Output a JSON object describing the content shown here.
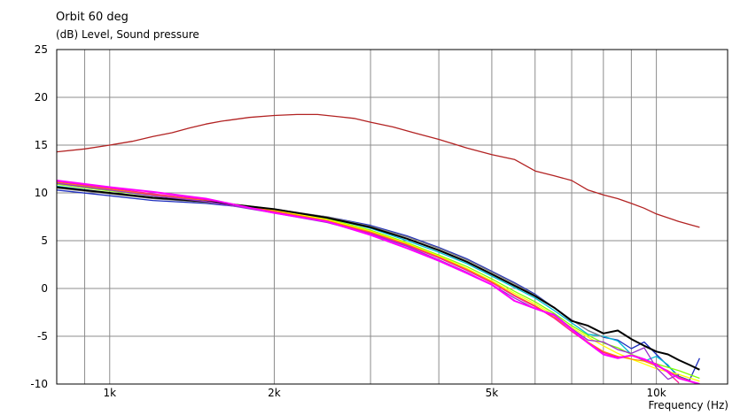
{
  "chart_data": {
    "type": "line",
    "title": "Orbit 60 deg",
    "ylabel": "(dB)  Level, Sound pressure",
    "xlabel": "Frequency  (Hz)",
    "x_scale": "log",
    "xlim": [
      800,
      13500
    ],
    "ylim": [
      -10,
      25
    ],
    "yticks": [
      25,
      20,
      15,
      10,
      5,
      0,
      -5,
      -10
    ],
    "xtick_labels": [
      {
        "value": 1000,
        "label": "1k"
      },
      {
        "value": 2000,
        "label": "2k"
      },
      {
        "value": 5000,
        "label": "5k"
      },
      {
        "value": 10000,
        "label": "10k"
      }
    ],
    "x_gridlines": [
      800,
      900,
      1000,
      2000,
      3000,
      4000,
      5000,
      6000,
      7000,
      8000,
      9000,
      10000
    ],
    "y_gridlines": [
      -5,
      0,
      5,
      10,
      15,
      20
    ],
    "series": [
      {
        "color": "#b22222",
        "width": 1.3,
        "points": [
          [
            800,
            14.3
          ],
          [
            900,
            14.6
          ],
          [
            1000,
            15.0
          ],
          [
            1100,
            15.4
          ],
          [
            1200,
            15.9
          ],
          [
            1300,
            16.3
          ],
          [
            1400,
            16.8
          ],
          [
            1500,
            17.2
          ],
          [
            1600,
            17.5
          ],
          [
            1800,
            17.9
          ],
          [
            2000,
            18.1
          ],
          [
            2200,
            18.2
          ],
          [
            2400,
            18.2
          ],
          [
            2600,
            18.0
          ],
          [
            2800,
            17.8
          ],
          [
            3000,
            17.4
          ],
          [
            3300,
            16.9
          ],
          [
            3600,
            16.3
          ],
          [
            4000,
            15.6
          ],
          [
            4500,
            14.7
          ],
          [
            5000,
            14.0
          ],
          [
            5500,
            13.5
          ],
          [
            6000,
            12.3
          ],
          [
            6500,
            11.8
          ],
          [
            7000,
            11.3
          ],
          [
            7500,
            10.3
          ],
          [
            8000,
            9.8
          ],
          [
            8500,
            9.4
          ],
          [
            9000,
            8.9
          ],
          [
            9500,
            8.4
          ],
          [
            10000,
            7.8
          ],
          [
            11000,
            7.0
          ],
          [
            12000,
            6.4
          ]
        ]
      },
      {
        "color": "#1f2fbf",
        "width": 1.3,
        "points": [
          [
            800,
            10.3
          ],
          [
            1000,
            9.7
          ],
          [
            1200,
            9.2
          ],
          [
            1500,
            8.9
          ],
          [
            2000,
            8.2
          ],
          [
            2500,
            7.5
          ],
          [
            3000,
            6.6
          ],
          [
            3500,
            5.5
          ],
          [
            4000,
            4.3
          ],
          [
            4500,
            3.1
          ],
          [
            5000,
            1.8
          ],
          [
            5500,
            0.6
          ],
          [
            6000,
            -0.6
          ],
          [
            6500,
            -2.0
          ],
          [
            7000,
            -3.3
          ],
          [
            7500,
            -4.4
          ],
          [
            8000,
            -5.1
          ],
          [
            8500,
            -5.4
          ],
          [
            9000,
            -6.3
          ],
          [
            9500,
            -5.6
          ],
          [
            10000,
            -6.9
          ],
          [
            10500,
            -8.1
          ],
          [
            11000,
            -9.2
          ],
          [
            11500,
            -9.6
          ],
          [
            12000,
            -7.3
          ]
        ]
      },
      {
        "color": "#00bcd4",
        "width": 1.3,
        "points": [
          [
            800,
            10.7
          ],
          [
            1000,
            10.0
          ],
          [
            1200,
            9.5
          ],
          [
            1500,
            9.1
          ],
          [
            2000,
            8.3
          ],
          [
            2500,
            7.4
          ],
          [
            3000,
            6.3
          ],
          [
            3500,
            5.0
          ],
          [
            4000,
            3.8
          ],
          [
            4500,
            2.6
          ],
          [
            5000,
            1.3
          ],
          [
            5500,
            0.1
          ],
          [
            6000,
            -1.0
          ],
          [
            6500,
            -2.3
          ],
          [
            7000,
            -3.6
          ],
          [
            7500,
            -4.8
          ],
          [
            8000,
            -5.0
          ],
          [
            8500,
            -5.5
          ],
          [
            9000,
            -6.9
          ],
          [
            9500,
            -7.6
          ],
          [
            10000,
            -7.1
          ],
          [
            10500,
            -8.0
          ],
          [
            11000,
            -9.4
          ]
        ]
      },
      {
        "color": "#7fff00",
        "width": 1.3,
        "points": [
          [
            800,
            10.9
          ],
          [
            1000,
            10.2
          ],
          [
            1200,
            9.7
          ],
          [
            1500,
            9.2
          ],
          [
            2000,
            8.3
          ],
          [
            2500,
            7.3
          ],
          [
            3000,
            6.1
          ],
          [
            3500,
            4.8
          ],
          [
            4000,
            3.5
          ],
          [
            4500,
            2.3
          ],
          [
            5000,
            1.0
          ],
          [
            5500,
            -0.3
          ],
          [
            6000,
            -1.4
          ],
          [
            6500,
            -2.6
          ],
          [
            7000,
            -3.9
          ],
          [
            7500,
            -4.9
          ],
          [
            8000,
            -5.7
          ],
          [
            8500,
            -6.2
          ],
          [
            9000,
            -6.9
          ],
          [
            9500,
            -7.4
          ],
          [
            10000,
            -7.9
          ],
          [
            11000,
            -8.6
          ],
          [
            12000,
            -9.4
          ]
        ]
      },
      {
        "color": "#ffff00",
        "width": 1.3,
        "points": [
          [
            800,
            11.0
          ],
          [
            1000,
            10.3
          ],
          [
            1200,
            9.8
          ],
          [
            1500,
            9.2
          ],
          [
            2000,
            8.2
          ],
          [
            2500,
            7.2
          ],
          [
            3000,
            6.0
          ],
          [
            3500,
            4.7
          ],
          [
            4000,
            3.4
          ],
          [
            4500,
            2.1
          ],
          [
            5000,
            0.8
          ],
          [
            5500,
            -0.5
          ],
          [
            6000,
            -1.6
          ],
          [
            6500,
            -2.8
          ],
          [
            7000,
            -4.1
          ],
          [
            7500,
            -5.1
          ],
          [
            8000,
            -6.0
          ],
          [
            8500,
            -6.8
          ],
          [
            9000,
            -7.4
          ],
          [
            9500,
            -7.9
          ],
          [
            10000,
            -8.4
          ],
          [
            11000,
            -9.0
          ],
          [
            12000,
            -9.7
          ]
        ]
      },
      {
        "color": "#ff8c00",
        "width": 1.3,
        "points": [
          [
            800,
            11.1
          ],
          [
            1000,
            10.4
          ],
          [
            1200,
            9.8
          ],
          [
            1500,
            9.2
          ],
          [
            2000,
            8.1
          ],
          [
            2500,
            7.1
          ],
          [
            3000,
            5.9
          ],
          [
            3500,
            4.6
          ],
          [
            4000,
            3.3
          ],
          [
            4500,
            2.0
          ],
          [
            5000,
            0.7
          ],
          [
            5500,
            -0.7
          ],
          [
            6000,
            -1.8
          ],
          [
            6500,
            -3.0
          ],
          [
            7000,
            -4.3
          ],
          [
            7500,
            -5.6
          ],
          [
            8000,
            -6.6
          ],
          [
            8500,
            -7.1
          ],
          [
            9000,
            -7.4
          ],
          [
            9500,
            -7.6
          ],
          [
            10000,
            -8.1
          ],
          [
            10500,
            -8.6
          ],
          [
            11000,
            -9.3
          ],
          [
            12000,
            -10.0
          ]
        ]
      },
      {
        "color": "#ff1493",
        "width": 1.3,
        "points": [
          [
            800,
            11.2
          ],
          [
            1000,
            10.5
          ],
          [
            1200,
            9.9
          ],
          [
            1500,
            9.3
          ],
          [
            2000,
            8.0
          ],
          [
            2500,
            7.0
          ],
          [
            3000,
            5.8
          ],
          [
            3500,
            4.5
          ],
          [
            4000,
            3.2
          ],
          [
            4500,
            1.9
          ],
          [
            5000,
            0.6
          ],
          [
            5500,
            -0.8
          ],
          [
            6000,
            -1.9
          ],
          [
            6500,
            -3.1
          ],
          [
            7000,
            -4.5
          ],
          [
            7500,
            -5.7
          ],
          [
            8000,
            -6.7
          ],
          [
            8500,
            -7.2
          ],
          [
            9000,
            -7.0
          ],
          [
            9500,
            -7.5
          ],
          [
            10000,
            -7.9
          ],
          [
            10500,
            -8.8
          ],
          [
            11000,
            -9.9
          ]
        ]
      },
      {
        "color": "#808080",
        "width": 1.3,
        "points": [
          [
            800,
            10.5
          ],
          [
            1000,
            9.9
          ],
          [
            1200,
            9.4
          ],
          [
            1500,
            9.0
          ],
          [
            2000,
            8.3
          ],
          [
            2500,
            7.5
          ],
          [
            3000,
            6.5
          ],
          [
            3500,
            5.4
          ],
          [
            4000,
            4.2
          ],
          [
            4500,
            3.0
          ],
          [
            5000,
            1.7
          ],
          [
            5500,
            0.5
          ],
          [
            6000,
            -0.7
          ],
          [
            6500,
            -2.0
          ],
          [
            7000,
            -3.3
          ],
          [
            7500,
            -4.4
          ],
          [
            8000,
            -5.1
          ]
        ]
      },
      {
        "color": "#000000",
        "width": 2.0,
        "points": [
          [
            800,
            10.6
          ],
          [
            1000,
            10.0
          ],
          [
            1200,
            9.5
          ],
          [
            1500,
            9.1
          ],
          [
            2000,
            8.3
          ],
          [
            2500,
            7.4
          ],
          [
            3000,
            6.4
          ],
          [
            3500,
            5.2
          ],
          [
            4000,
            4.0
          ],
          [
            4500,
            2.8
          ],
          [
            5000,
            1.5
          ],
          [
            5500,
            0.3
          ],
          [
            6000,
            -0.8
          ],
          [
            6500,
            -2.0
          ],
          [
            7000,
            -3.4
          ],
          [
            7500,
            -3.9
          ],
          [
            8000,
            -4.7
          ],
          [
            8500,
            -4.4
          ],
          [
            9000,
            -5.3
          ],
          [
            9500,
            -6.0
          ],
          [
            10000,
            -6.6
          ],
          [
            10500,
            -6.9
          ],
          [
            11000,
            -7.5
          ],
          [
            11500,
            -8.0
          ],
          [
            12000,
            -8.5
          ]
        ]
      },
      {
        "color": "#9932cc",
        "width": 1.3,
        "points": [
          [
            800,
            11.0
          ],
          [
            1000,
            10.3
          ],
          [
            1200,
            9.7
          ],
          [
            1500,
            9.1
          ],
          [
            2000,
            7.9
          ],
          [
            2500,
            6.9
          ],
          [
            3000,
            5.7
          ],
          [
            3500,
            4.4
          ],
          [
            4000,
            3.0
          ],
          [
            4500,
            1.7
          ],
          [
            5000,
            0.4
          ],
          [
            5500,
            -1.0
          ],
          [
            6000,
            -2.1
          ],
          [
            6500,
            -2.7
          ],
          [
            7000,
            -4.2
          ],
          [
            7500,
            -5.4
          ],
          [
            8000,
            -5.6
          ],
          [
            8500,
            -6.4
          ],
          [
            9000,
            -6.8
          ],
          [
            9500,
            -6.2
          ],
          [
            10000,
            -8.3
          ],
          [
            10500,
            -9.5
          ],
          [
            11000,
            -9.0
          ]
        ]
      },
      {
        "color": "#ff00ff",
        "width": 2.0,
        "points": [
          [
            800,
            11.3
          ],
          [
            1000,
            10.6
          ],
          [
            1200,
            10.1
          ],
          [
            1500,
            9.4
          ],
          [
            2000,
            7.9
          ],
          [
            2500,
            7.0
          ],
          [
            3000,
            5.6
          ],
          [
            3500,
            4.2
          ],
          [
            4000,
            2.9
          ],
          [
            4500,
            1.6
          ],
          [
            5000,
            0.4
          ],
          [
            5500,
            -1.3
          ],
          [
            6000,
            -2.1
          ],
          [
            6500,
            -2.8
          ],
          [
            7000,
            -4.3
          ],
          [
            7500,
            -5.7
          ],
          [
            8000,
            -6.9
          ],
          [
            8500,
            -7.3
          ],
          [
            9000,
            -7.0
          ],
          [
            9500,
            -7.4
          ],
          [
            10000,
            -8.0
          ],
          [
            10500,
            -8.7
          ],
          [
            11000,
            -9.4
          ],
          [
            12000,
            -10.0
          ]
        ]
      }
    ]
  }
}
